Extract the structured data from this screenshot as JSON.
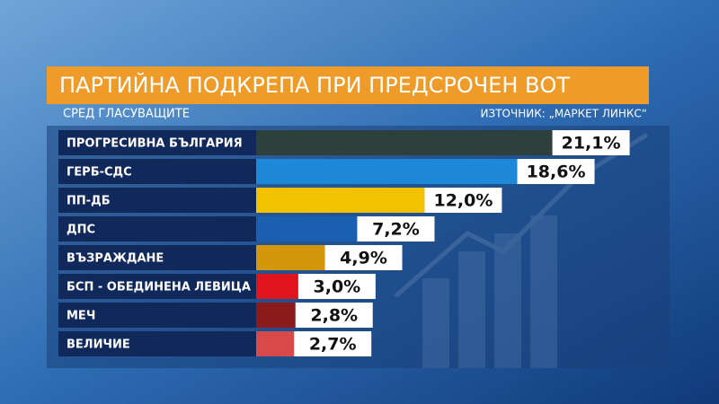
{
  "chart_data": {
    "type": "bar",
    "orientation": "horizontal",
    "title": "ПАРТИЙНА ПОДКРЕПА ПРИ ПРЕДСРОЧЕН ВОТ",
    "subtitle": "СРЕД ГЛАСУВАЩИТЕ",
    "source": "ИЗТОЧНИК: „МАРКЕТ ЛИНКС“",
    "categories": [
      "ПРОГРЕСИВНА БЪЛГАРИЯ",
      "ГЕРБ-СДС",
      "ПП-ДБ",
      "ДПС",
      "ВЪЗРАЖДАНЕ",
      "БСП - ОБЕДИНЕНА ЛЕВИЦА",
      "МЕЧ",
      "ВЕЛИЧИЕ"
    ],
    "values": [
      21.1,
      18.6,
      12.0,
      7.2,
      4.9,
      3.0,
      2.8,
      2.7
    ],
    "value_labels": [
      "21,1%",
      "18,6%",
      "12,0%",
      "7,2%",
      "4,9%",
      "3,0%",
      "2,8%",
      "2,7%"
    ],
    "colors": [
      "#2d403b",
      "#1e88d8",
      "#f2c200",
      "#1a5fb0",
      "#d4960a",
      "#e0141c",
      "#8b1a1a",
      "#d84a4a"
    ]
  }
}
